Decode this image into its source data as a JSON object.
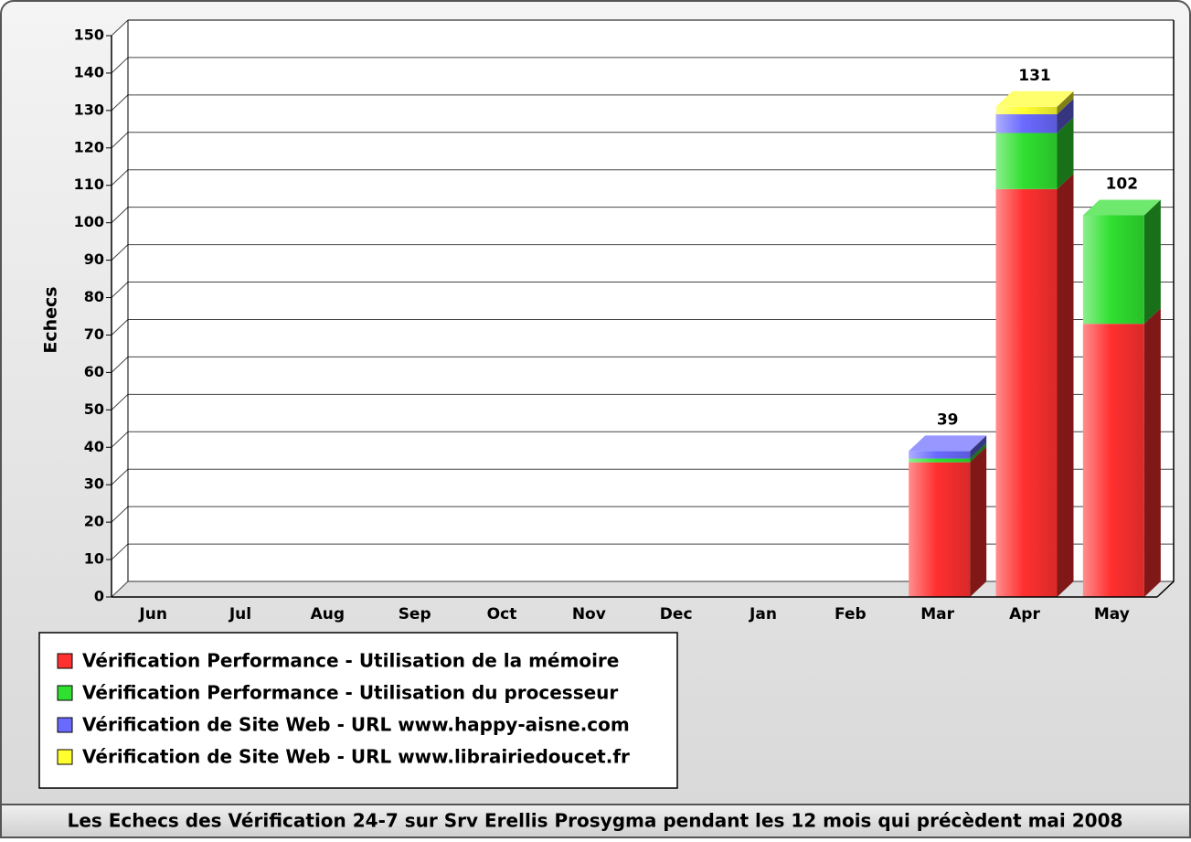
{
  "chart_data": {
    "type": "stacked-bar-3d",
    "title": "Les Echecs des Vérification 24-7 sur Srv Erellis Prosygma pendant les 12 mois qui précèdent mai 2008",
    "ylabel": "Echecs",
    "categories": [
      "Jun",
      "Jul",
      "Aug",
      "Sep",
      "Oct",
      "Nov",
      "Dec",
      "Jan",
      "Feb",
      "Mar",
      "Apr",
      "May"
    ],
    "series": [
      {
        "name": "Vérification Performance - Utilisation de la mémoire",
        "color": "#ff3030",
        "values": [
          0,
          0,
          0,
          0,
          0,
          0,
          0,
          0,
          0,
          36,
          109,
          73
        ]
      },
      {
        "name": "Vérification Performance - Utilisation du processeur",
        "color": "#30e030",
        "values": [
          0,
          0,
          0,
          0,
          0,
          0,
          0,
          0,
          0,
          1,
          15,
          29
        ]
      },
      {
        "name": "Vérification de Site Web - URL www.happy-aisne.com",
        "color": "#6a6aff",
        "values": [
          0,
          0,
          0,
          0,
          0,
          0,
          0,
          0,
          0,
          2,
          5,
          0
        ]
      },
      {
        "name": "Vérification de Site Web - URL www.librairiedoucet.fr",
        "color": "#ffff30",
        "values": [
          0,
          0,
          0,
          0,
          0,
          0,
          0,
          0,
          0,
          0,
          2,
          0
        ]
      }
    ],
    "totals": [
      null,
      null,
      null,
      null,
      null,
      null,
      null,
      null,
      null,
      39,
      131,
      102
    ],
    "ylim": [
      0,
      150
    ],
    "yticks": [
      0,
      10,
      20,
      30,
      40,
      50,
      60,
      70,
      80,
      90,
      100,
      110,
      120,
      130,
      140,
      150
    ],
    "grid": true,
    "legend": "bottom-left"
  }
}
